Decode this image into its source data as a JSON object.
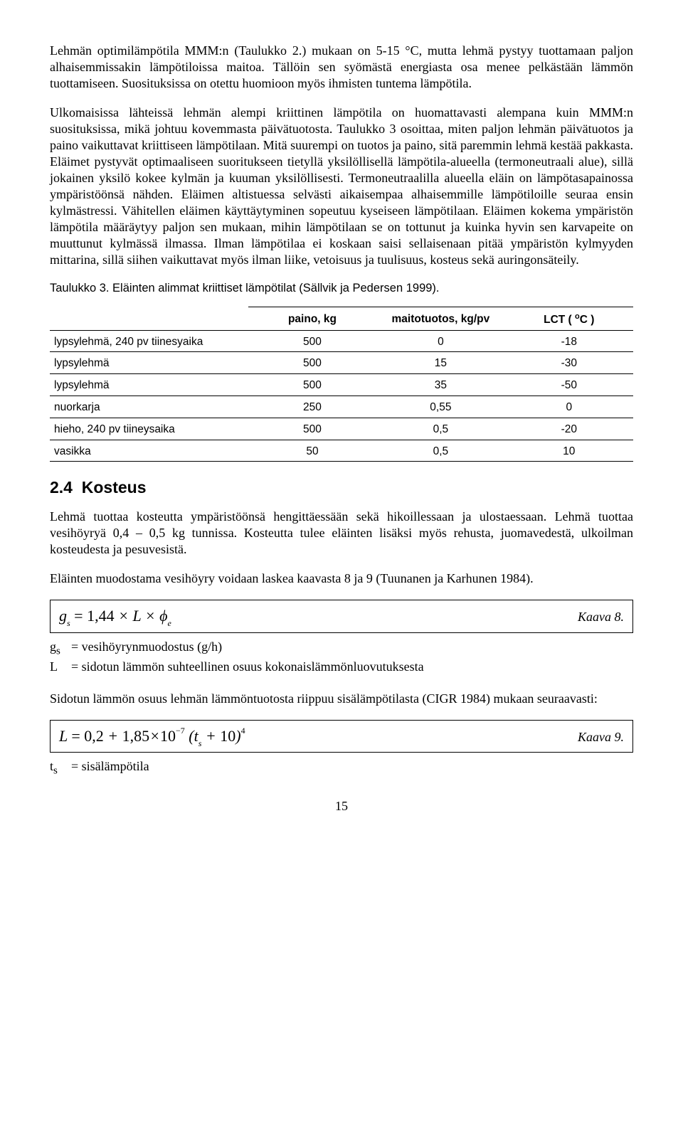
{
  "paragraphs": {
    "p1": "Lehmän optimilämpötila MMM:n (Taulukko 2.) mukaan on 5-15 °C, mutta lehmä pystyy tuottamaan paljon alhaisemmissakin lämpötiloissa maitoa. Tällöin sen syömästä energiasta osa menee pelkästään lämmön tuottamiseen. Suosituksissa on otettu huomioon myös ihmisten tuntema lämpötila.",
    "p2": "Ulkomaisissa lähteissä lehmän alempi kriittinen lämpötila on huomattavasti alempana kuin MMM:n suosituksissa, mikä johtuu kovemmasta päivätuotosta. Taulukko 3 osoittaa, miten paljon lehmän päivätuotos ja paino vaikuttavat kriittiseen lämpötilaan. Mitä suurempi on tuotos ja paino, sitä paremmin lehmä kestää pakkasta. Eläimet pystyvät optimaaliseen suoritukseen tietyllä yksilöllisellä lämpötila-alueella (termoneutraali alue), sillä jokainen yksilö kokee kylmän ja kuuman yksilöllisesti. Termoneutraalilla alueella eläin on lämpötasapainossa ympäristöönsä nähden. Eläimen altistuessa selvästi aikaisempaa alhaisemmille lämpötiloille seuraa ensin kylmästressi. Vähitellen eläimen käyttäytyminen sopeutuu kyseiseen lämpötilaan. Eläimen kokema ympäristön lämpötila määräytyy paljon sen mukaan, mihin lämpötilaan se on tottunut ja kuinka hyvin sen karvapeite on muuttunut kylmässä ilmassa. Ilman lämpötilaa ei koskaan saisi sellaisenaan pitää ympäristön kylmyyden mittarina, sillä siihen vaikuttavat myös ilman liike, vetoisuus ja tuulisuus, kosteus sekä auringonsäteily.",
    "tableCaption": "Taulukko 3. Eläinten alimmat kriittiset lämpötilat (Sällvik ja Pedersen 1999).",
    "p3": "Lehmä tuottaa kosteutta ympäristöönsä hengittäessään sekä hikoillessaan ja ulostaessaan. Lehmä tuottaa vesihöyryä 0,4 – 0,5 kg tunnissa. Kosteutta tulee eläinten lisäksi myös rehusta, juomavedestä, ulkoilman kosteudesta ja pesuvesistä.",
    "p4": "Eläinten muodostama vesihöyry voidaan laskea kaavasta 8 ja 9 (Tuunanen ja Karhunen 1984).",
    "p5": "Sidotun lämmön osuus lehmän lämmöntuotosta riippuu sisälämpötilasta (CIGR 1984) mukaan seuraavasti:"
  },
  "table": {
    "headers": [
      "",
      "paino, kg",
      "maitotuotos, kg/pv",
      "LCT ( °C )"
    ],
    "rows": [
      [
        "lypsylehmä, 240 pv tiinesyaika",
        "500",
        "0",
        "-18"
      ],
      [
        "lypsylehmä",
        "500",
        "15",
        "-30"
      ],
      [
        "lypsylehmä",
        "500",
        "35",
        "-50"
      ],
      [
        "nuorkarja",
        "250",
        "0,55",
        "0"
      ],
      [
        "hieho, 240 pv tiineysaika",
        "500",
        "0,5",
        "-20"
      ],
      [
        "vasikka",
        "50",
        "0,5",
        "10"
      ]
    ]
  },
  "section": {
    "number": "2.4",
    "title": "Kosteus"
  },
  "formula8": {
    "label": "Kaava 8."
  },
  "formula9": {
    "label": "Kaava 9."
  },
  "defs": {
    "gs_sym": "gₛ",
    "gs_txt": "= vesihöyrynmuodostus (g/h)",
    "L_sym": "L",
    "L_txt": "= sidotun lämmön suhteellinen osuus kokonaislämmönluovutuksesta",
    "ts_sym": "tₛ",
    "ts_txt": "= sisälämpötila"
  },
  "page": "15"
}
